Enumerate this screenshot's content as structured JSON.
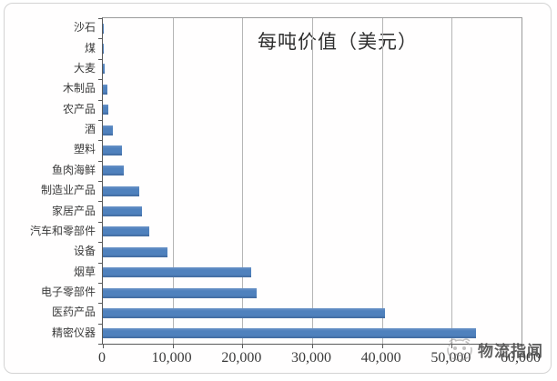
{
  "watermark": {
    "text": "物流指闻"
  },
  "chart_data": {
    "type": "bar",
    "orientation": "horizontal",
    "title": "每吨价值（美元）",
    "categories": [
      "沙石",
      "煤",
      "大麦",
      "木制品",
      "农产品",
      "酒",
      "塑料",
      "鱼肉海鲜",
      "制造业产品",
      "家居产品",
      "汽车和零部件",
      "设备",
      "烟草",
      "电子零部件",
      "医药产品",
      "精密仪器"
    ],
    "values": [
      120,
      140,
      260,
      650,
      730,
      1400,
      2700,
      2950,
      5200,
      5600,
      6700,
      9300,
      21300,
      22000,
      40400,
      53500
    ],
    "xlim": [
      0,
      60000
    ],
    "x_tick_labels": [
      "0",
      "10,000",
      "20,000",
      "30,000",
      "40,000",
      "50,000",
      "60,000"
    ],
    "x_tick_values": [
      0,
      10000,
      20000,
      30000,
      40000,
      50000,
      60000
    ],
    "ylabel": "",
    "xlabel": "",
    "grid": true,
    "legend": false,
    "bar_color": "#4f81bd",
    "gridline_color": "#b5b5b5",
    "axis_color": "#595959",
    "text_color": "#3a3a3a"
  }
}
